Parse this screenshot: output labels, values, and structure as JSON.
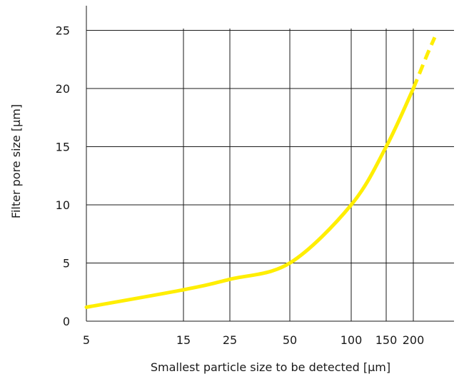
{
  "chart_data": {
    "type": "line",
    "title": "",
    "xlabel": "Smallest particle size to be detected [µm]",
    "ylabel": "Filter pore size [µm]",
    "x_ticks": [
      5,
      15,
      25,
      50,
      100,
      150,
      200
    ],
    "x_tick_labels": [
      "5",
      "15",
      "25",
      "50",
      "100",
      "150",
      "200"
    ],
    "y_ticks": [
      0,
      5,
      10,
      15,
      20,
      25
    ],
    "y_tick_labels": [
      "0",
      "5",
      "10",
      "15",
      "20",
      "25"
    ],
    "ylim": [
      0,
      25
    ],
    "grid": true,
    "legend": "none",
    "series": [
      {
        "color": "#ffee00",
        "points": [
          {
            "x": 5,
            "y": 1.2
          },
          {
            "x": 15,
            "y": 2.7
          },
          {
            "x": 25,
            "y": 3.6
          },
          {
            "x": 50,
            "y": 5.0
          },
          {
            "x": 100,
            "y": 10.0
          },
          {
            "x": 150,
            "y": 15.0
          },
          {
            "x": 200,
            "y": 20.0
          }
        ],
        "extrapolated": [
          {
            "x": 200,
            "y": 20.0
          },
          {
            "x": 210,
            "y": 21.5
          },
          {
            "x": 220,
            "y": 23.0
          },
          {
            "x": 230,
            "y": 24.4
          }
        ]
      }
    ]
  }
}
